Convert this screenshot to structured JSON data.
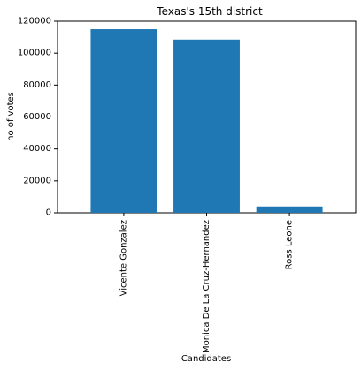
{
  "chart_data": {
    "type": "bar",
    "title": "Texas's 15th district",
    "xlabel": "Candidates",
    "ylabel": "no of votes",
    "categories": [
      "Vicente Gonzalez",
      "Monica De La Cruz-Hernandez",
      "Ross Leone"
    ],
    "values": [
      115000,
      108500,
      4000
    ],
    "ylim": [
      0,
      120000
    ],
    "yticks": [
      0,
      20000,
      40000,
      60000,
      80000,
      100000,
      120000
    ],
    "bar_color": "#1f77b4",
    "grid": false,
    "legend": "none"
  }
}
